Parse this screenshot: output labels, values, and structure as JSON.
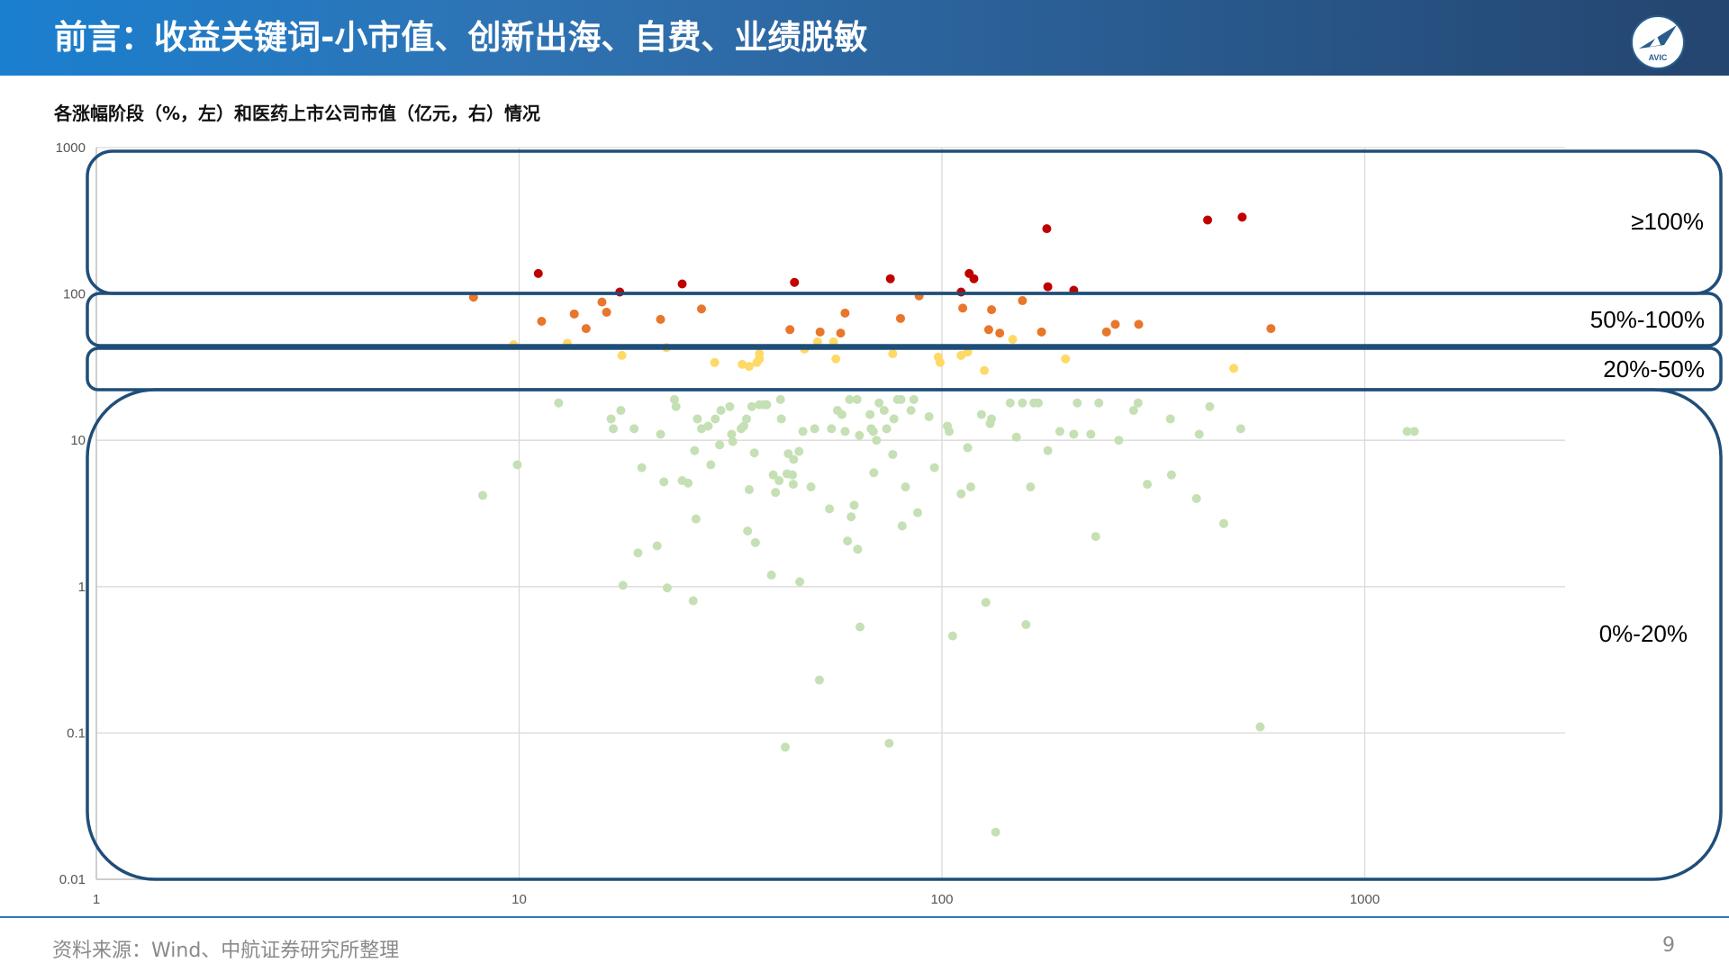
{
  "header": {
    "title": "前言：收益关键词-小市值、创新出海、自费、业绩脱敏",
    "logo_text": "AVIC",
    "logo_icon": "avic-jet-icon"
  },
  "chart_title": "各涨幅阶段（%，左）和医药上市公司市值（亿元，右）情况",
  "footer": {
    "source": "资料来源：Wind、中航证券研究所整理",
    "page": "9"
  },
  "chart_data": {
    "type": "scatter",
    "title": "",
    "xlabel": "",
    "ylabel": "",
    "x_scale": "log",
    "y_scale": "log",
    "xlim": [
      1,
      3000
    ],
    "ylim": [
      0.01,
      1000
    ],
    "x_ticks": [
      "1",
      "10",
      "100",
      "1000"
    ],
    "y_ticks": [
      "1000",
      "100",
      "10",
      "1",
      "0.1",
      "0.01"
    ],
    "grid": true,
    "bands": [
      {
        "label": "≥100%",
        "ylim": [
          100,
          1000
        ]
      },
      {
        "label": "50%-100%",
        "ylim": [
          39,
          100
        ]
      },
      {
        "label": "20%-50%",
        "ylim": [
          21,
          39
        ]
      },
      {
        "label": "0%-20%",
        "ylim": [
          0.01,
          21
        ]
      }
    ],
    "series": [
      {
        "color": "#c00000",
        "points": [
          [
            11.1,
            138
          ],
          [
            17.3,
            103
          ],
          [
            24.3,
            117
          ],
          [
            44.8,
            120
          ],
          [
            75.5,
            127
          ],
          [
            111,
            103
          ],
          [
            116,
            138
          ],
          [
            119,
            127
          ],
          [
            177,
            279
          ],
          [
            178,
            112
          ],
          [
            205,
            106
          ],
          [
            425,
            320
          ],
          [
            513,
            335
          ]
        ]
      },
      {
        "color": "#e8762b",
        "points": [
          [
            7.8,
            95
          ],
          [
            11.3,
            65
          ],
          [
            13.5,
            73
          ],
          [
            14.4,
            58
          ],
          [
            15.7,
            88
          ],
          [
            16.1,
            75
          ],
          [
            21.6,
            67
          ],
          [
            27,
            79
          ],
          [
            43.7,
            57
          ],
          [
            51.5,
            55
          ],
          [
            57.6,
            54
          ],
          [
            59,
            74
          ],
          [
            79.8,
            68
          ],
          [
            88.3,
            97
          ],
          [
            112,
            80
          ],
          [
            129,
            57
          ],
          [
            131,
            78
          ],
          [
            137,
            54
          ],
          [
            155,
            90
          ],
          [
            172,
            55
          ],
          [
            245,
            55
          ],
          [
            257,
            62
          ],
          [
            292,
            62
          ],
          [
            600,
            58
          ]
        ]
      },
      {
        "color": "#ffd966",
        "points": [
          [
            9.7,
            45
          ],
          [
            13,
            46
          ],
          [
            17.5,
            38
          ],
          [
            22.3,
            43
          ],
          [
            29,
            34
          ],
          [
            33.7,
            33
          ],
          [
            35,
            32
          ],
          [
            36.5,
            34
          ],
          [
            37,
            36
          ],
          [
            37,
            39
          ],
          [
            47.3,
            42
          ],
          [
            50.8,
            47
          ],
          [
            55.4,
            47
          ],
          [
            56.1,
            36
          ],
          [
            76.5,
            39
          ],
          [
            98,
            37
          ],
          [
            99,
            34
          ],
          [
            111,
            38
          ],
          [
            115,
            40
          ],
          [
            126,
            30
          ],
          [
            147,
            49
          ],
          [
            196,
            36
          ],
          [
            490,
            31
          ]
        ]
      },
      {
        "color": "#c5e0b4",
        "points": [
          [
            8.2,
            4.2
          ],
          [
            9.9,
            6.8
          ],
          [
            12.4,
            18
          ],
          [
            16.5,
            14
          ],
          [
            16.7,
            12
          ],
          [
            17.4,
            16
          ],
          [
            17.6,
            1.02
          ],
          [
            18.7,
            12
          ],
          [
            19.1,
            1.7
          ],
          [
            19.5,
            6.5
          ],
          [
            21.2,
            1.9
          ],
          [
            21.6,
            11
          ],
          [
            22,
            5.2
          ],
          [
            22.4,
            0.98
          ],
          [
            23.3,
            19
          ],
          [
            23.5,
            17
          ],
          [
            24.3,
            5.3
          ],
          [
            25.1,
            5.1
          ],
          [
            25.8,
            0.8
          ],
          [
            26,
            8.5
          ],
          [
            26.2,
            2.9
          ],
          [
            26.4,
            14
          ],
          [
            27,
            12
          ],
          [
            28,
            12.5
          ],
          [
            28.4,
            6.8
          ],
          [
            29.1,
            14
          ],
          [
            29.8,
            9.3
          ],
          [
            30,
            16
          ],
          [
            31.5,
            17
          ],
          [
            31.8,
            11
          ],
          [
            32,
            9.8
          ],
          [
            33.5,
            12
          ],
          [
            34,
            12.5
          ],
          [
            34.5,
            14
          ],
          [
            34.7,
            2.4
          ],
          [
            35,
            4.6
          ],
          [
            35.5,
            17
          ],
          [
            36,
            8.2
          ],
          [
            36.2,
            2
          ],
          [
            37,
            17.5
          ],
          [
            38,
            17.5
          ],
          [
            38.5,
            17.5
          ],
          [
            39.5,
            1.2
          ],
          [
            39.9,
            5.8
          ],
          [
            40.4,
            4.4
          ],
          [
            41.2,
            5.3
          ],
          [
            41.5,
            19
          ],
          [
            41.7,
            14
          ],
          [
            42.6,
            0.08
          ],
          [
            43,
            5.9
          ],
          [
            43.3,
            8.1
          ],
          [
            44.3,
            5.8
          ],
          [
            44.5,
            5
          ],
          [
            44.6,
            7.4
          ],
          [
            45.9,
            8.4
          ],
          [
            46.1,
            1.08
          ],
          [
            46.9,
            11.5
          ],
          [
            49,
            4.8
          ],
          [
            50,
            12
          ],
          [
            51.3,
            0.23
          ],
          [
            54.2,
            3.4
          ],
          [
            54.8,
            12
          ],
          [
            56.6,
            16
          ],
          [
            58,
            15
          ],
          [
            59,
            11.5
          ],
          [
            59.8,
            2.05
          ],
          [
            60.5,
            19
          ],
          [
            61,
            3
          ],
          [
            62,
            3.6
          ],
          [
            63,
            19
          ],
          [
            63.2,
            1.8
          ],
          [
            63.8,
            10.8
          ],
          [
            64,
            0.53
          ],
          [
            67.6,
            15
          ],
          [
            68,
            12
          ],
          [
            68.8,
            11.5
          ],
          [
            69,
            6
          ],
          [
            70,
            10
          ],
          [
            71,
            18
          ],
          [
            73,
            16
          ],
          [
            74,
            12
          ],
          [
            75,
            0.085
          ],
          [
            76.5,
            8
          ],
          [
            77,
            14
          ],
          [
            78.5,
            19
          ],
          [
            80,
            19
          ],
          [
            80.5,
            2.6
          ],
          [
            82,
            4.8
          ],
          [
            84.5,
            16
          ],
          [
            85.8,
            19
          ],
          [
            87.6,
            3.2
          ],
          [
            93.2,
            14.5
          ],
          [
            96,
            6.5
          ],
          [
            103,
            12.5
          ],
          [
            104,
            11.5
          ],
          [
            106,
            0.46
          ],
          [
            111,
            4.3
          ],
          [
            115,
            8.9
          ],
          [
            117,
            4.8
          ],
          [
            124,
            15
          ],
          [
            127,
            0.78
          ],
          [
            130,
            13
          ],
          [
            131,
            14
          ],
          [
            134,
            0.021
          ],
          [
            145,
            18
          ],
          [
            150,
            10.5
          ],
          [
            155,
            18
          ],
          [
            158,
            0.55
          ],
          [
            162,
            4.8
          ],
          [
            165,
            18
          ],
          [
            169,
            18
          ],
          [
            178,
            8.5
          ],
          [
            190,
            11.5
          ],
          [
            205,
            11
          ],
          [
            209,
            18
          ],
          [
            225,
            11
          ],
          [
            231,
            2.2
          ],
          [
            235,
            18
          ],
          [
            262,
            10
          ],
          [
            284,
            16
          ],
          [
            291,
            18
          ],
          [
            306,
            5
          ],
          [
            347,
            14
          ],
          [
            349,
            5.8
          ],
          [
            400,
            4
          ],
          [
            406,
            11
          ],
          [
            430,
            17
          ],
          [
            464,
            2.7
          ],
          [
            509,
            12
          ],
          [
            566,
            0.11
          ],
          [
            1260,
            11.5
          ],
          [
            1310,
            11.5
          ]
        ]
      }
    ]
  }
}
